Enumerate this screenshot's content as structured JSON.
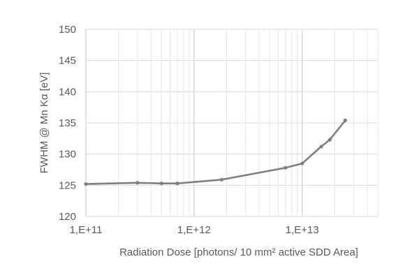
{
  "chart_data": {
    "type": "line",
    "title": "",
    "xlabel": "Radiation Dose [photons/ 10 mm² active SDD Area]",
    "ylabel": "FWHM @ Mn Kα [eV]",
    "x_scale": "log",
    "xlim": [
      100000000000.0,
      50000000000000.0
    ],
    "ylim": [
      120,
      150
    ],
    "x_ticks": [
      {
        "value": 100000000000.0,
        "label": "1,E+11"
      },
      {
        "value": 1000000000000.0,
        "label": "1,E+12"
      },
      {
        "value": 10000000000000.0,
        "label": "1,E+13"
      }
    ],
    "y_ticks": [
      {
        "value": 120,
        "label": "120"
      },
      {
        "value": 125,
        "label": "125"
      },
      {
        "value": 130,
        "label": "130"
      },
      {
        "value": 135,
        "label": "135"
      },
      {
        "value": 140,
        "label": "140"
      },
      {
        "value": 145,
        "label": "145"
      },
      {
        "value": 150,
        "label": "150"
      }
    ],
    "grid": true,
    "legend": "none",
    "series": [
      {
        "color": "#7f7f7f",
        "points": [
          {
            "x": 100000000000.0,
            "y": 125.2
          },
          {
            "x": 300000000000.0,
            "y": 125.4
          },
          {
            "x": 500000000000.0,
            "y": 125.3
          },
          {
            "x": 700000000000.0,
            "y": 125.3
          },
          {
            "x": 1800000000000.0,
            "y": 125.9
          },
          {
            "x": 7000000000000.0,
            "y": 127.8
          },
          {
            "x": 10000000000000.0,
            "y": 128.5
          },
          {
            "x": 15000000000000.0,
            "y": 131.2
          },
          {
            "x": 18000000000000.0,
            "y": 132.3
          },
          {
            "x": 25000000000000.0,
            "y": 135.4
          }
        ]
      }
    ]
  }
}
